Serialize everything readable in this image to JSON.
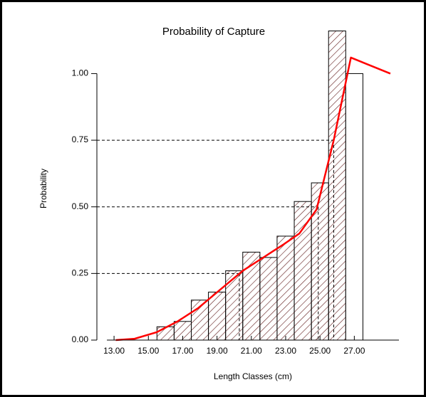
{
  "chart_data": {
    "type": "histogram",
    "title": "Probability of Capture",
    "x_label": "Length Classes (cm)",
    "y_label": "Probability",
    "bins": [
      15.5,
      16.5,
      17.5,
      18.5,
      19.5,
      20.5,
      21.5,
      22.5,
      23.5,
      24.5,
      25.5,
      26.5,
      27.5
    ],
    "counts": [
      0.05,
      0.07,
      0.15,
      0.18,
      0.26,
      0.33,
      0.31,
      0.39,
      0.52,
      0.59,
      1.16,
      1.0
    ],
    "bar_fills": [
      "hatched",
      "hatched",
      "hatched",
      "hatched",
      "hatched",
      "hatched",
      "hatched",
      "hatched",
      "hatched",
      "hatched",
      "hatched",
      "white"
    ],
    "bar_color": "#6b2a2a",
    "line": {
      "color": "#ff0000",
      "x": [
        13.1,
        14.2,
        15.5,
        16.7,
        17.9,
        19.2,
        20.5,
        21.7,
        22.9,
        23.8,
        24.8,
        25.8,
        26.8,
        29.1
      ],
      "values": [
        0,
        0.005,
        0.03,
        0.07,
        0.12,
        0.19,
        0.26,
        0.31,
        0.36,
        0.4,
        0.49,
        0.75,
        1.06,
        1.0
      ]
    },
    "reference_lines": [
      {
        "y": 0.25,
        "x": 20.3
      },
      {
        "y": 0.5,
        "x": 24.9
      },
      {
        "y": 0.75,
        "x": 25.8
      }
    ],
    "xlim": [
      12,
      29.6
    ],
    "ylim": [
      0,
      1.18
    ],
    "xticks": [
      {
        "value": 13,
        "label": "13.00"
      },
      {
        "value": 15,
        "label": "15.00"
      },
      {
        "value": 17,
        "label": "17.00"
      },
      {
        "value": 19,
        "label": "19.00"
      },
      {
        "value": 21,
        "label": "21.00"
      },
      {
        "value": 23,
        "label": "23.00"
      },
      {
        "value": 25,
        "label": "25.00"
      },
      {
        "value": 27,
        "label": "27.00"
      }
    ],
    "yticks": [
      {
        "value": 0,
        "label": "0.00"
      },
      {
        "value": 0.25,
        "label": "0.25"
      },
      {
        "value": 0.5,
        "label": "0.50"
      },
      {
        "value": 0.75,
        "label": "0.75"
      },
      {
        "value": 1,
        "label": "1.00"
      }
    ]
  }
}
